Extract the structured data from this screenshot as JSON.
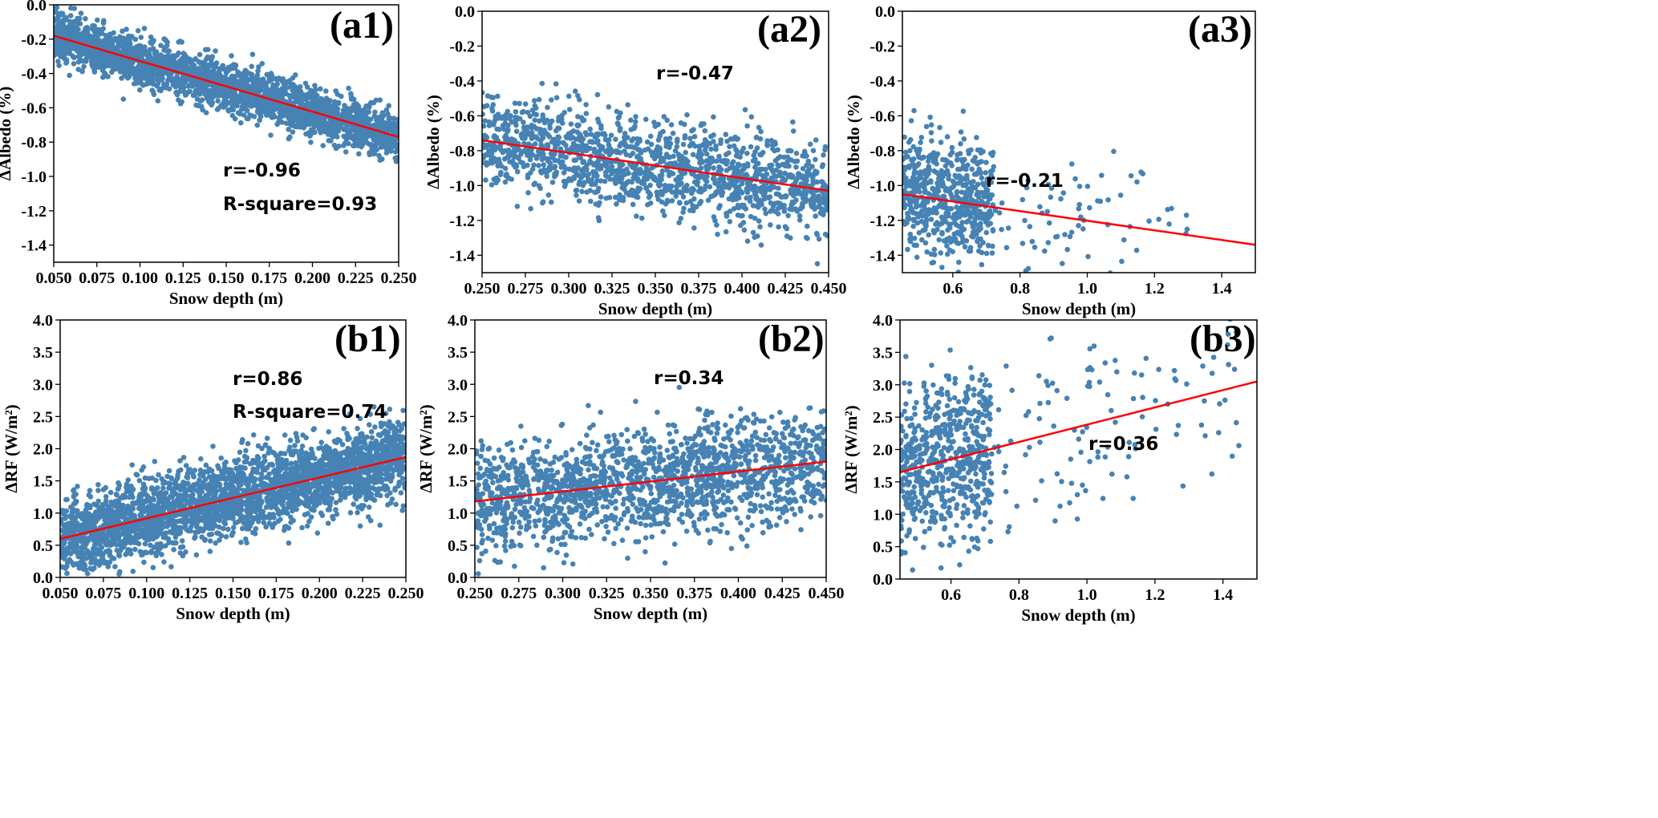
{
  "chart_data": [
    {
      "panel": "(a1)",
      "type": "scatter",
      "xlabel": "Snow depth (m)",
      "ylabel": "ΔAlbedo (%)",
      "xlim": [
        0.05,
        0.25
      ],
      "ylim": [
        -1.5,
        0.0
      ],
      "xticks": [
        "0.050",
        "0.075",
        "0.100",
        "0.125",
        "0.150",
        "0.175",
        "0.200",
        "0.225",
        "0.250"
      ],
      "yticks": [
        "0.0",
        "-0.2",
        "-0.4",
        "-0.6",
        "-0.8",
        "-1.0",
        "-1.2",
        "-1.4"
      ],
      "fit_line": {
        "x": [
          0.05,
          0.25
        ],
        "y": [
          -0.18,
          -0.77
        ]
      },
      "annotations": [
        "r=-0.96",
        "R-square=0.93"
      ],
      "scatter": {
        "n": 2600,
        "x_range": [
          0.05,
          0.25
        ],
        "trend_y": [
          -0.18,
          -0.77
        ],
        "spread": 0.07
      },
      "point_color": "#4682b4",
      "line_color": "#ff0000"
    },
    {
      "panel": "(a2)",
      "type": "scatter",
      "xlabel": "Snow depth (m)",
      "ylabel": "ΔAlbedo (%)",
      "xlim": [
        0.25,
        0.45
      ],
      "ylim": [
        -1.5,
        0.0
      ],
      "xticks": [
        "0.250",
        "0.275",
        "0.300",
        "0.325",
        "0.350",
        "0.375",
        "0.400",
        "0.425",
        "0.450"
      ],
      "yticks": [
        "0.0",
        "-0.2",
        "-0.4",
        "-0.6",
        "-0.8",
        "-1.0",
        "-1.2",
        "-1.4"
      ],
      "fit_line": {
        "x": [
          0.25,
          0.45
        ],
        "y": [
          -0.74,
          -1.03
        ]
      },
      "annotations": [
        "r=-0.47"
      ],
      "scatter": {
        "n": 1500,
        "x_range": [
          0.25,
          0.45
        ],
        "trend_y": [
          -0.74,
          -1.03
        ],
        "spread": 0.13
      },
      "point_color": "#4682b4",
      "line_color": "#ff0000"
    },
    {
      "panel": "(a3)",
      "type": "scatter",
      "xlabel": "Snow depth (m)",
      "ylabel": "ΔAlbedo (%)",
      "xlim": [
        0.45,
        1.5
      ],
      "ylim": [
        -1.5,
        0.0
      ],
      "xticks": [
        "0.6",
        "0.8",
        "1.0",
        "1.2",
        "1.4"
      ],
      "yticks": [
        "0.0",
        "-0.2",
        "-0.4",
        "-0.6",
        "-0.8",
        "-1.0",
        "-1.2",
        "-1.4"
      ],
      "fit_line": {
        "x": [
          0.45,
          1.5
        ],
        "y": [
          -1.05,
          -1.34
        ]
      },
      "annotations": [
        "r=-0.21"
      ],
      "scatter": {
        "n": 650,
        "x_range": [
          0.45,
          1.3
        ],
        "trend_y": [
          -1.05,
          -1.25
        ],
        "spread": 0.17,
        "dense_below": 0.72
      },
      "point_color": "#4682b4",
      "line_color": "#ff0000"
    },
    {
      "panel": "(b1)",
      "type": "scatter",
      "xlabel": "Snow depth (m)",
      "ylabel": "ΔRF (W/m²)",
      "xlim": [
        0.05,
        0.25
      ],
      "ylim": [
        0.0,
        4.0
      ],
      "xticks": [
        "0.050",
        "0.075",
        "0.100",
        "0.125",
        "0.150",
        "0.175",
        "0.200",
        "0.225",
        "0.250"
      ],
      "yticks": [
        "0.0",
        "0.5",
        "1.0",
        "1.5",
        "2.0",
        "2.5",
        "3.0",
        "3.5",
        "4.0"
      ],
      "fit_line": {
        "x": [
          0.05,
          0.25
        ],
        "y": [
          0.6,
          1.87
        ]
      },
      "annotations": [
        "r=0.86",
        "R-square=0.74"
      ],
      "scatter": {
        "n": 2800,
        "x_range": [
          0.05,
          0.25
        ],
        "trend_y": [
          0.6,
          1.87
        ],
        "spread": 0.3
      },
      "point_color": "#4682b4",
      "line_color": "#ff0000"
    },
    {
      "panel": "(b2)",
      "type": "scatter",
      "xlabel": "Snow depth (m)",
      "ylabel": "ΔRF (W/m²)",
      "xlim": [
        0.25,
        0.45
      ],
      "ylim": [
        0.0,
        4.0
      ],
      "xticks": [
        "0.250",
        "0.275",
        "0.300",
        "0.325",
        "0.350",
        "0.375",
        "0.400",
        "0.425",
        "0.450"
      ],
      "yticks": [
        "0.0",
        "0.5",
        "1.0",
        "1.5",
        "2.0",
        "2.5",
        "3.0",
        "3.5",
        "4.0"
      ],
      "fit_line": {
        "x": [
          0.25,
          0.45
        ],
        "y": [
          1.18,
          1.8
        ]
      },
      "annotations": [
        "r=0.34"
      ],
      "scatter": {
        "n": 1700,
        "x_range": [
          0.25,
          0.45
        ],
        "trend_y": [
          1.18,
          1.8
        ],
        "spread": 0.42
      },
      "point_color": "#4682b4",
      "line_color": "#ff0000"
    },
    {
      "panel": "(b3)",
      "type": "scatter",
      "xlabel": "Snow depth (m)",
      "ylabel": "ΔRF (W/m²)",
      "xlim": [
        0.45,
        1.5
      ],
      "ylim": [
        0.0,
        4.0
      ],
      "xticks": [
        "0.6",
        "0.8",
        "1.0",
        "1.2",
        "1.4"
      ],
      "yticks": [
        "0.0",
        "0.5",
        "1.0",
        "1.5",
        "2.0",
        "2.5",
        "3.0",
        "3.5",
        "4.0"
      ],
      "fit_line": {
        "x": [
          0.45,
          1.5
        ],
        "y": [
          1.65,
          3.05
        ]
      },
      "annotations": [
        "r=0.36"
      ],
      "scatter": {
        "n": 700,
        "x_range": [
          0.45,
          1.45
        ],
        "trend_y": [
          1.65,
          3.0
        ],
        "spread": 0.65,
        "dense_below": 0.72
      },
      "point_color": "#4682b4",
      "line_color": "#ff0000"
    }
  ]
}
